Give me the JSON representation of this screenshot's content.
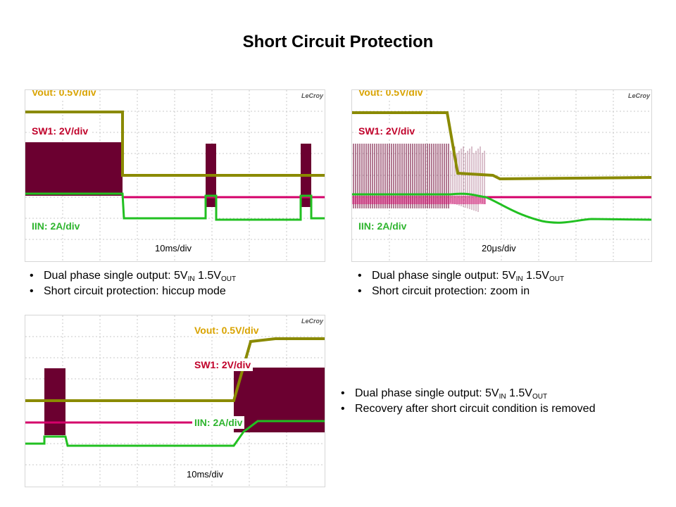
{
  "title": "Short Circuit Protection",
  "brand": "LeCroy",
  "scopes": [
    {
      "vout_label": "Vout: 0.5V/div",
      "sw_label": "SW1: 2V/div",
      "iin_label": "IIN: 2A/div",
      "time_div": "10ms/div"
    },
    {
      "vout_label": "Vout: 0.5V/div",
      "sw_label": "SW1: 2V/div",
      "iin_label": "IIN: 2A/div",
      "time_div": "20μs/div"
    },
    {
      "vout_label": "Vout: 0.5V/div",
      "sw_label": "SW1: 2V/div",
      "iin_label": "IIN: 2A/div",
      "time_div": "10ms/div"
    }
  ],
  "bullet_groups": [
    {
      "b1": {
        "pre": "Dual phase single output: 5V",
        "sub1": "IN",
        "mid": " 1.5V",
        "sub2": "OUT"
      },
      "b2": "Short circuit protection: hiccup mode"
    },
    {
      "b1": {
        "pre": "Dual phase single output: 5V",
        "sub1": "IN",
        "mid": " 1.5V",
        "sub2": "OUT"
      },
      "b2": "Short circuit protection: zoom in"
    },
    {
      "b1": {
        "pre": "Dual phase single output: 5V",
        "sub1": "IN",
        "mid": " 1.5V",
        "sub2": "OUT"
      },
      "b2": "Recovery after short circuit condition is removed"
    }
  ],
  "colors": {
    "vout": "#8a8a00",
    "sw": "#6b0030",
    "sw_line": "#d4006a",
    "iin": "#21c021",
    "label_vout": "#d9a300",
    "label_sw": "#c0002a",
    "label_iin": "#2fb52f"
  }
}
